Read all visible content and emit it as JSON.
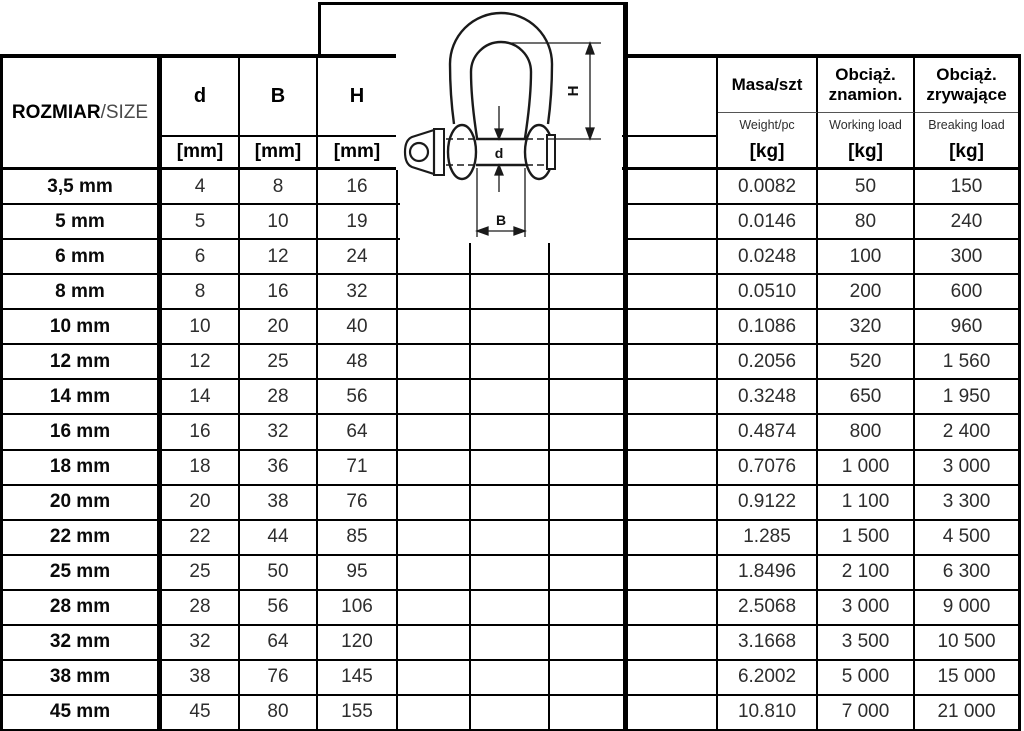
{
  "header": {
    "size_pl": "ROZMIAR",
    "size_en": "/SIZE",
    "d": "d",
    "b": "B",
    "h": "H",
    "unit_mm": "[mm]",
    "unit_kg": "[kg]",
    "mass_pl": "Masa/szt",
    "mass_en": "Weight/pc",
    "working_pl1": "Obciąż.",
    "working_pl2": "znamion.",
    "working_en": "Working load",
    "breaking_pl1": "Obciąż.",
    "breaking_pl2": "zrywające",
    "breaking_en": "Breaking load"
  },
  "diagram": {
    "h_label": "H",
    "d_label": "d",
    "b_label": "B"
  },
  "rows": [
    {
      "size": "3,5 mm",
      "d": "4",
      "b": "8",
      "h": "16",
      "mass": "0.0082",
      "working": "50",
      "breaking": "150"
    },
    {
      "size": "5 mm",
      "d": "5",
      "b": "10",
      "h": "19",
      "mass": "0.0146",
      "working": "80",
      "breaking": "240"
    },
    {
      "size": "6 mm",
      "d": "6",
      "b": "12",
      "h": "24",
      "mass": "0.0248",
      "working": "100",
      "breaking": "300"
    },
    {
      "size": "8 mm",
      "d": "8",
      "b": "16",
      "h": "32",
      "mass": "0.0510",
      "working": "200",
      "breaking": "600"
    },
    {
      "size": "10 mm",
      "d": "10",
      "b": "20",
      "h": "40",
      "mass": "0.1086",
      "working": "320",
      "breaking": "960"
    },
    {
      "size": "12 mm",
      "d": "12",
      "b": "25",
      "h": "48",
      "mass": "0.2056",
      "working": "520",
      "breaking": "1 560"
    },
    {
      "size": "14 mm",
      "d": "14",
      "b": "28",
      "h": "56",
      "mass": "0.3248",
      "working": "650",
      "breaking": "1 950"
    },
    {
      "size": "16 mm",
      "d": "16",
      "b": "32",
      "h": "64",
      "mass": "0.4874",
      "working": "800",
      "breaking": "2 400"
    },
    {
      "size": "18 mm",
      "d": "18",
      "b": "36",
      "h": "71",
      "mass": "0.7076",
      "working": "1 000",
      "breaking": "3 000"
    },
    {
      "size": "20 mm",
      "d": "20",
      "b": "38",
      "h": "76",
      "mass": "0.9122",
      "working": "1 100",
      "breaking": "3 300"
    },
    {
      "size": "22 mm",
      "d": "22",
      "b": "44",
      "h": "85",
      "mass": "1.285",
      "working": "1 500",
      "breaking": "4 500"
    },
    {
      "size": "25 mm",
      "d": "25",
      "b": "50",
      "h": "95",
      "mass": "1.8496",
      "working": "2 100",
      "breaking": "6 300"
    },
    {
      "size": "28 mm",
      "d": "28",
      "b": "56",
      "h": "106",
      "mass": "2.5068",
      "working": "3 000",
      "breaking": "9 000"
    },
    {
      "size": "32 mm",
      "d": "32",
      "b": "64",
      "h": "120",
      "mass": "3.1668",
      "working": "3 500",
      "breaking": "10 500"
    },
    {
      "size": "38 mm",
      "d": "38",
      "b": "76",
      "h": "145",
      "mass": "6.2002",
      "working": "5 000",
      "breaking": "15 000"
    },
    {
      "size": "45 mm",
      "d": "45",
      "b": "80",
      "h": "155",
      "mass": "10.810",
      "working": "7 000",
      "breaking": "21 000"
    }
  ]
}
